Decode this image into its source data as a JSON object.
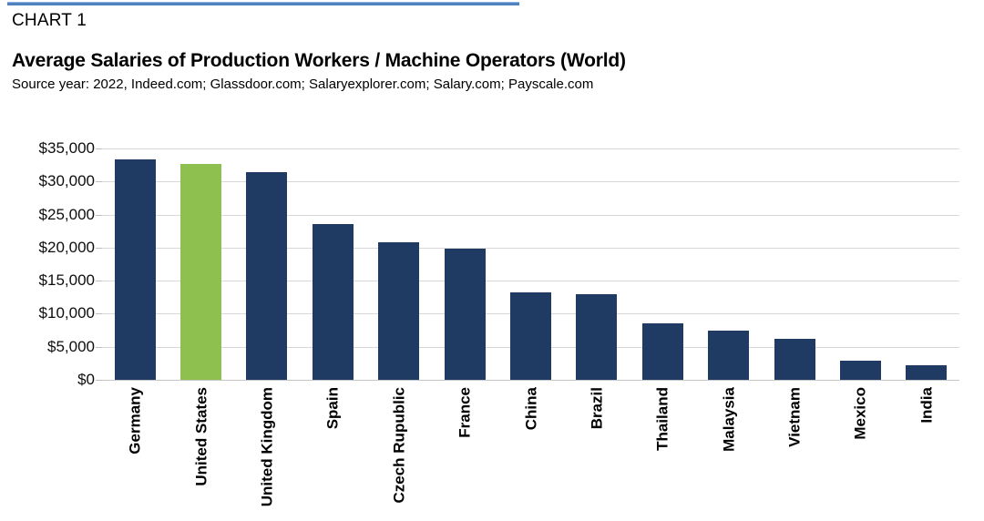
{
  "header": {
    "chart_label": "CHART 1",
    "title": "Average Salaries of Production Workers / Machine Operators (World)",
    "source": "Source year: 2022, Indeed.com; Glassdoor.com; Salaryexplorer.com; Salary.com; Payscale.com"
  },
  "colors": {
    "bar": "#1f3a63",
    "highlight_bar": "#8dc04e",
    "gridline": "#d8d8d8",
    "axis_line": "#c6c6c6",
    "tick": "#bfbfbf",
    "top_rule": "#4f81bd",
    "text": "#000000"
  },
  "chart_data": {
    "type": "bar",
    "title": "Average Salaries of Production Workers / Machine Operators (World)",
    "subtitle": "Source year: 2022, Indeed.com; Glassdoor.com; Salaryexplorer.com; Salary.com; Payscale.com",
    "categories": [
      "Germany",
      "United States",
      "United Kingdom",
      "Spain",
      "Czech Rupublic",
      "France",
      "China",
      "Brazil",
      "Thailand",
      "Malaysia",
      "Vietnam",
      "Mexico",
      "India"
    ],
    "values": [
      33400,
      32700,
      31400,
      23600,
      20800,
      19900,
      13200,
      12900,
      8600,
      7500,
      6200,
      2900,
      2200
    ],
    "highlight_category": "United States",
    "xlabel": "",
    "ylabel": "",
    "ylim": [
      0,
      35000
    ],
    "ytick_step": 5000,
    "ytick_labels": [
      "$35,000",
      "$30,000",
      "$25,000",
      "$20,000",
      "$15,000",
      "$10,000",
      "$5,000",
      "$0"
    ],
    "grid": "horizontal",
    "legend": "none",
    "x_label_rotation": -90
  }
}
